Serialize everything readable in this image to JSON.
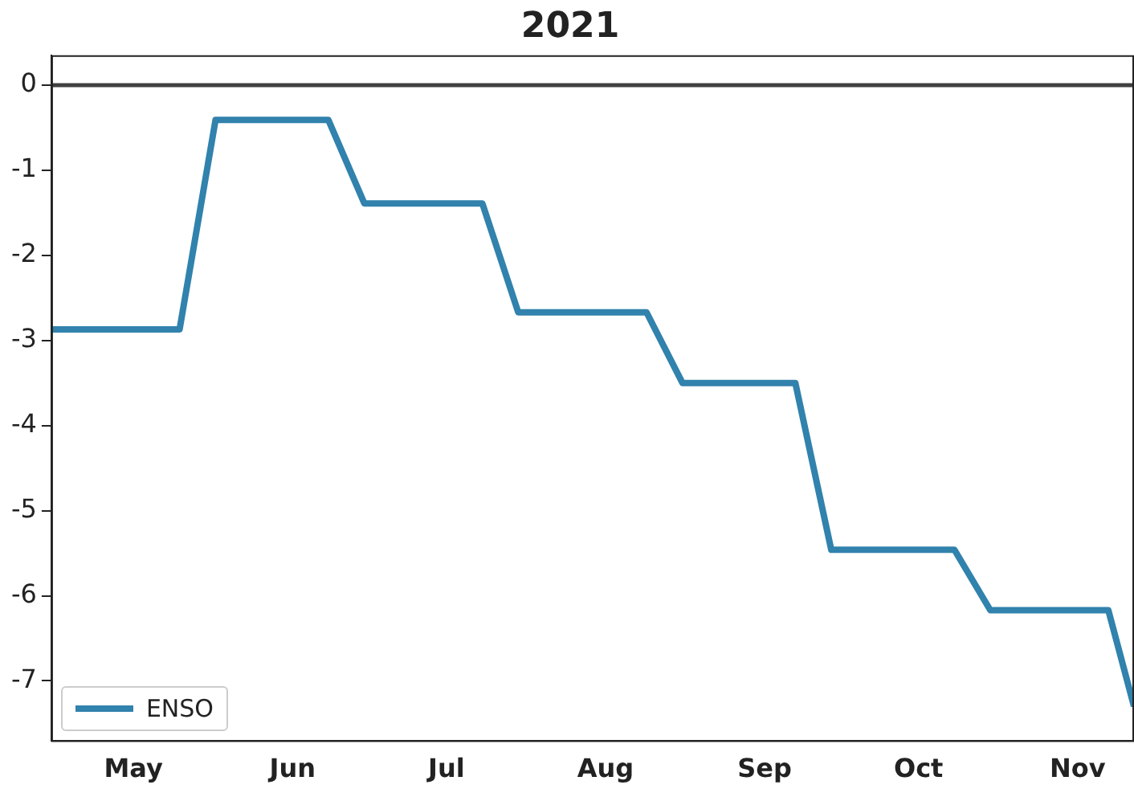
{
  "chart_data": {
    "type": "line",
    "title": "2021",
    "x": [
      "2021-04-15",
      "2021-05-10",
      "2021-05-17",
      "2021-06-08",
      "2021-06-15",
      "2021-07-08",
      "2021-07-15",
      "2021-08-09",
      "2021-08-16",
      "2021-09-07",
      "2021-09-14",
      "2021-10-08",
      "2021-10-15",
      "2021-11-07",
      "2021-11-12"
    ],
    "series": [
      {
        "name": "ENSO",
        "color": "#3182ad",
        "values": [
          -2.87,
          -2.87,
          -0.41,
          -0.41,
          -1.39,
          -1.39,
          -2.67,
          -2.67,
          -3.5,
          -3.5,
          -5.46,
          -5.46,
          -6.17,
          -6.17,
          -7.3
        ]
      }
    ],
    "xlim": [
      "2021-04-15",
      "2021-11-12"
    ],
    "xticks": [
      {
        "value": "2021-05-01",
        "label": "May"
      },
      {
        "value": "2021-06-01",
        "label": "Jun"
      },
      {
        "value": "2021-07-01",
        "label": "Jul"
      },
      {
        "value": "2021-08-01",
        "label": "Aug"
      },
      {
        "value": "2021-09-01",
        "label": "Sep"
      },
      {
        "value": "2021-10-01",
        "label": "Oct"
      },
      {
        "value": "2021-11-01",
        "label": "Nov"
      }
    ],
    "ylim": [
      -7.7,
      0.35
    ],
    "yticks": [
      0,
      -1,
      -2,
      -3,
      -4,
      -5,
      -6,
      -7
    ],
    "ref_lines": [
      {
        "axis": "y",
        "value": 0,
        "color": "#404040"
      }
    ],
    "legend": "bottom left",
    "marker": "none",
    "line_style": "solid"
  }
}
